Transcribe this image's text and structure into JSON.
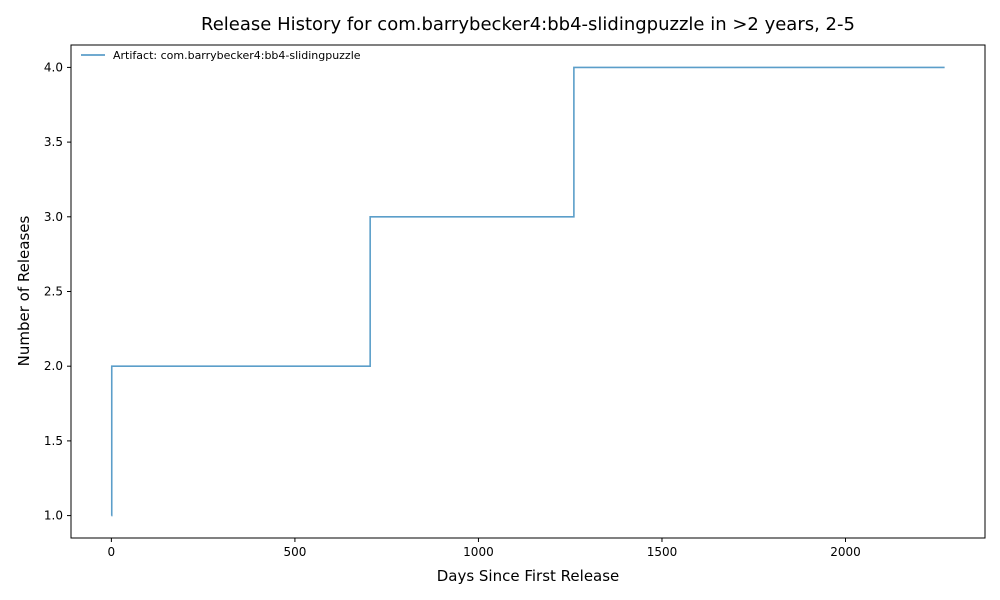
{
  "chart_data": {
    "type": "line",
    "step": "post",
    "title": "Release History for com.barrybecker4:bb4-slidingpuzzle in >2 years, 2-5",
    "xlabel": "Days Since First Release",
    "ylabel": "Number of Releases",
    "xlim": [
      -110,
      2380
    ],
    "ylim": [
      0.85,
      4.15
    ],
    "xticks": [
      0,
      500,
      1000,
      1500,
      2000
    ],
    "xtick_labels": [
      "0",
      "500",
      "1000",
      "1500",
      "2000"
    ],
    "yticks": [
      1.0,
      1.5,
      2.0,
      2.5,
      3.0,
      3.5,
      4.0
    ],
    "ytick_labels": [
      "1.0",
      "1.5",
      "2.0",
      "2.5",
      "3.0",
      "3.5",
      "4.0"
    ],
    "grid": false,
    "legend_position": "top-left",
    "series": [
      {
        "name": "Artifact: com.barrybecker4:bb4-slidingpuzzle",
        "color": "#5b9ec9",
        "x": [
          0,
          1,
          705,
          1260,
          2270
        ],
        "y": [
          1,
          2,
          3,
          4,
          4
        ]
      }
    ]
  }
}
